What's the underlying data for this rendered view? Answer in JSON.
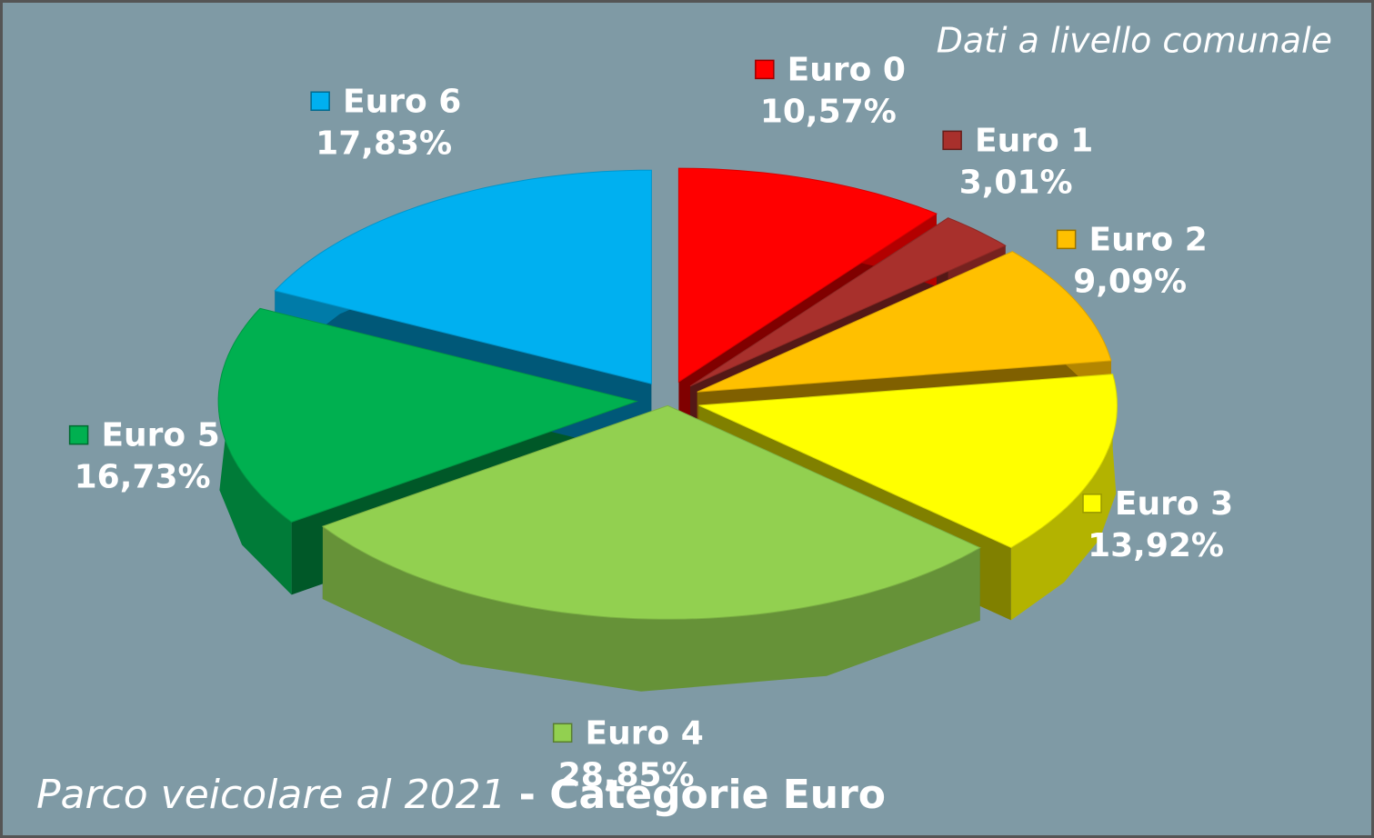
{
  "chart_data": {
    "type": "pie",
    "title": "Parco veicolare al 2021",
    "title_emphasis": "- Categorie Euro",
    "subtitle": "Dati a livello comunale",
    "categories": [
      "Euro 0",
      "Euro 1",
      "Euro 2",
      "Euro 3",
      "Euro 4",
      "Euro 5",
      "Euro 6"
    ],
    "values": [
      10.57,
      3.01,
      9.09,
      13.92,
      28.85,
      16.73,
      17.83
    ],
    "value_labels": [
      "10,57%",
      "3,01%",
      "9,09%",
      "13,92%",
      "28,85%",
      "16,73%",
      "17,83%"
    ],
    "colors": [
      "#ff0000",
      "#a8302c",
      "#ffc000",
      "#ffff00",
      "#92d050",
      "#00b050",
      "#00b0f0"
    ]
  }
}
